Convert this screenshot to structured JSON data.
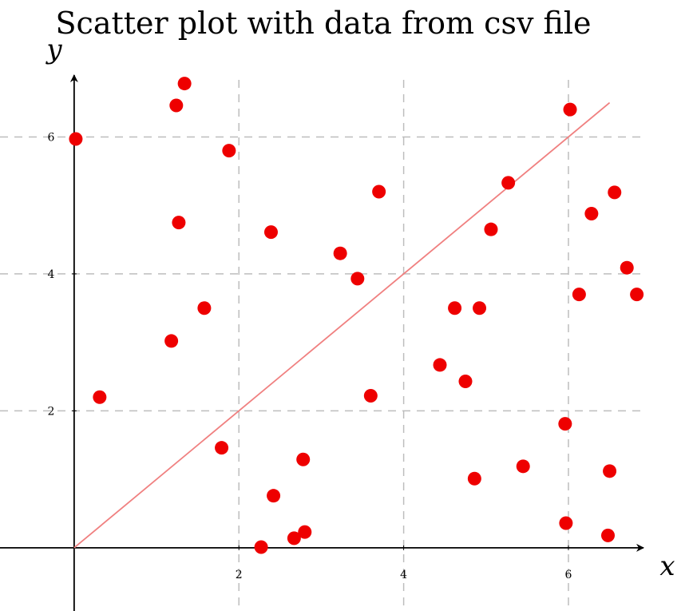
{
  "chart_data": {
    "type": "scatter",
    "title": "Scatter plot with data from csv file",
    "xlabel": "x",
    "ylabel": "y",
    "xlim": [
      -0.9,
      6.95
    ],
    "ylim": [
      -0.9,
      6.95
    ],
    "xticks": [
      2,
      4,
      6
    ],
    "yticks": [
      2,
      4,
      6
    ],
    "xtick_labels": [
      "2",
      "4",
      "6"
    ],
    "ytick_labels": [
      "2",
      "4",
      "6"
    ],
    "grid": true,
    "point_color": "#ee0000",
    "line_color": "#f08080",
    "points": [
      {
        "x": 0.02,
        "y": 5.97
      },
      {
        "x": 0.31,
        "y": 2.2
      },
      {
        "x": 1.24,
        "y": 6.46
      },
      {
        "x": 1.34,
        "y": 6.78
      },
      {
        "x": 1.27,
        "y": 4.75
      },
      {
        "x": 1.18,
        "y": 3.02
      },
      {
        "x": 1.58,
        "y": 3.5
      },
      {
        "x": 1.88,
        "y": 5.8
      },
      {
        "x": 1.79,
        "y": 1.46
      },
      {
        "x": 2.39,
        "y": 4.61
      },
      {
        "x": 2.42,
        "y": 0.76
      },
      {
        "x": 2.27,
        "y": 0.01
      },
      {
        "x": 2.67,
        "y": 0.14
      },
      {
        "x": 2.8,
        "y": 0.23
      },
      {
        "x": 2.78,
        "y": 1.29
      },
      {
        "x": 3.23,
        "y": 4.3
      },
      {
        "x": 3.44,
        "y": 3.93
      },
      {
        "x": 3.7,
        "y": 5.2
      },
      {
        "x": 3.6,
        "y": 2.22
      },
      {
        "x": 4.44,
        "y": 2.67
      },
      {
        "x": 4.62,
        "y": 3.5
      },
      {
        "x": 4.75,
        "y": 2.43
      },
      {
        "x": 4.92,
        "y": 3.5
      },
      {
        "x": 4.86,
        "y": 1.01
      },
      {
        "x": 5.06,
        "y": 4.65
      },
      {
        "x": 5.27,
        "y": 5.33
      },
      {
        "x": 5.45,
        "y": 1.19
      },
      {
        "x": 6.02,
        "y": 6.4
      },
      {
        "x": 5.96,
        "y": 1.81
      },
      {
        "x": 5.97,
        "y": 0.36
      },
      {
        "x": 6.13,
        "y": 3.7
      },
      {
        "x": 6.28,
        "y": 4.88
      },
      {
        "x": 6.56,
        "y": 5.19
      },
      {
        "x": 6.71,
        "y": 4.09
      },
      {
        "x": 6.83,
        "y": 3.7
      },
      {
        "x": 6.5,
        "y": 1.12
      },
      {
        "x": 6.48,
        "y": 0.18
      }
    ],
    "line": {
      "x": [
        0,
        6.5
      ],
      "y": [
        0,
        6.5
      ]
    }
  }
}
